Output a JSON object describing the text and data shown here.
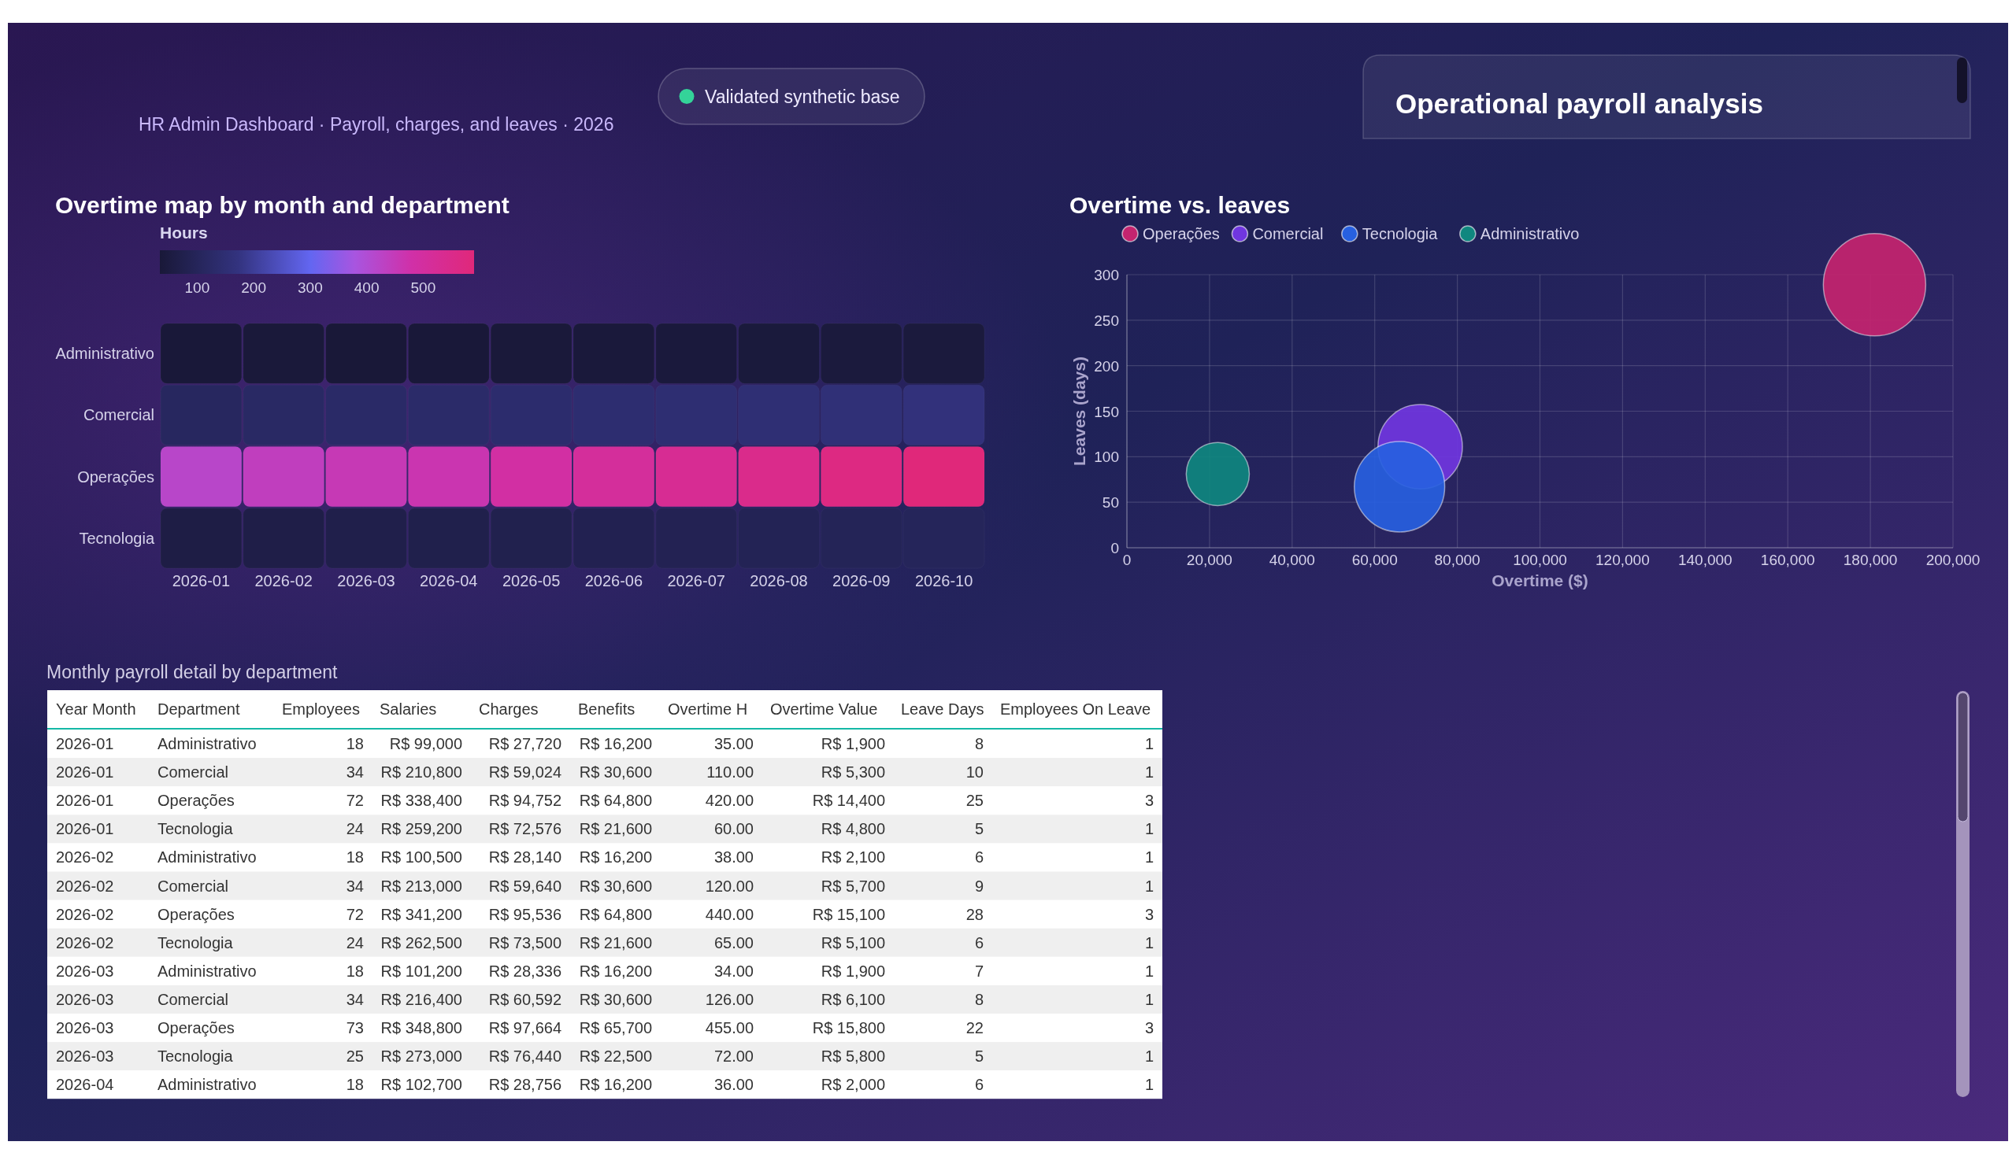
{
  "chart_data": [
    {
      "type": "other",
      "title": "Operational payroll analysis",
      "subtitle": "HR Admin Dashboard · Payroll, charges, and leaves · 2026",
      "annotations": [
        "Validated synthetic base"
      ]
    },
    {
      "type": "heatmap",
      "title": "Overtime map by month and department",
      "clabel": "Hours",
      "categories": [
        "2026-01",
        "2026-02",
        "2026-03",
        "2026-04",
        "2026-05",
        "2026-06",
        "2026-07",
        "2026-08",
        "2026-09",
        "2026-10"
      ],
      "y_categories": [
        "Administrativo",
        "Comercial",
        "Operações",
        "Tecnologia"
      ],
      "cells": [
        [
          35,
          38,
          34,
          36,
          38,
          40,
          41,
          42,
          43,
          44
        ],
        [
          110,
          120,
          126,
          130,
          138,
          143,
          148,
          152,
          158,
          165
        ],
        [
          420,
          440,
          455,
          465,
          490,
          510,
          530,
          550,
          570,
          590
        ],
        [
          60,
          65,
          72,
          74,
          78,
          82,
          86,
          90,
          95,
          100
        ]
      ],
      "clim": [
        34,
        590
      ],
      "cticks": [
        100,
        200,
        300,
        400,
        500
      ]
    },
    {
      "type": "bubble",
      "title": "Overtime vs. leaves",
      "xlabel": "Overtime ($)",
      "ylabel": "Leaves (days)",
      "legend": "top left",
      "grid": true,
      "xlim": [
        0,
        200000
      ],
      "xticks": [
        0,
        {
          "value": 20000,
          "label": "20,000"
        },
        {
          "value": 40000,
          "label": "40,000"
        },
        {
          "value": 60000,
          "label": "60,000"
        },
        {
          "value": 80000,
          "label": "80,000"
        },
        {
          "value": 100000,
          "label": "100,000"
        },
        {
          "value": 120000,
          "label": "120,000"
        },
        {
          "value": 140000,
          "label": "140,000"
        },
        {
          "value": 160000,
          "label": "160,000"
        },
        {
          "value": 180000,
          "label": "180,000"
        },
        {
          "value": 200000,
          "label": "200,000"
        }
      ],
      "ylim": [
        0,
        300
      ],
      "yticks": [
        0,
        50,
        100,
        150,
        200,
        250,
        300
      ],
      "series": [
        {
          "name": "Operações",
          "color": "#c4246f",
          "x": [
            181000
          ],
          "values": [
            289
          ],
          "sizes": [
            1
          ]
        },
        {
          "name": "Comercial",
          "color": "#7036e0",
          "x": [
            71000
          ],
          "values": [
            111
          ],
          "sizes": [
            0.68
          ]
        },
        {
          "name": "Tecnologia",
          "color": "#2760e0",
          "x": [
            66000
          ],
          "values": [
            67
          ],
          "sizes": [
            0.78
          ]
        },
        {
          "name": "Administrativo",
          "color": "#0f877f",
          "x": [
            22000
          ],
          "values": [
            81
          ],
          "sizes": [
            0.38
          ]
        }
      ]
    },
    {
      "type": "other",
      "title": "Monthly payroll detail by department",
      "categories": [
        "Year Month",
        "Department",
        "Employees",
        "Salaries",
        "Charges",
        "Benefits",
        "Overtime H",
        "Overtime Value",
        "Leave Days",
        "Employees On Leave"
      ],
      "cell_labels": [
        [
          "2026-01",
          "Administrativo",
          "18",
          "R$ 99,000",
          "R$ 27,720",
          "R$ 16,200",
          "35.00",
          "R$ 1,900",
          "8",
          "1"
        ],
        [
          "2026-01",
          "Comercial",
          "34",
          "R$ 210,800",
          "R$ 59,024",
          "R$ 30,600",
          "110.00",
          "R$ 5,300",
          "10",
          "1"
        ],
        [
          "2026-01",
          "Operações",
          "72",
          "R$ 338,400",
          "R$ 94,752",
          "R$ 64,800",
          "420.00",
          "R$ 14,400",
          "25",
          "3"
        ],
        [
          "2026-01",
          "Tecnologia",
          "24",
          "R$ 259,200",
          "R$ 72,576",
          "R$ 21,600",
          "60.00",
          "R$ 4,800",
          "5",
          "1"
        ],
        [
          "2026-02",
          "Administrativo",
          "18",
          "R$ 100,500",
          "R$ 28,140",
          "R$ 16,200",
          "38.00",
          "R$ 2,100",
          "6",
          "1"
        ],
        [
          "2026-02",
          "Comercial",
          "34",
          "R$ 213,000",
          "R$ 59,640",
          "R$ 30,600",
          "120.00",
          "R$ 5,700",
          "9",
          "1"
        ],
        [
          "2026-02",
          "Operações",
          "72",
          "R$ 341,200",
          "R$ 95,536",
          "R$ 64,800",
          "440.00",
          "R$ 15,100",
          "28",
          "3"
        ],
        [
          "2026-02",
          "Tecnologia",
          "24",
          "R$ 262,500",
          "R$ 73,500",
          "R$ 21,600",
          "65.00",
          "R$ 5,100",
          "6",
          "1"
        ],
        [
          "2026-03",
          "Administrativo",
          "18",
          "R$ 101,200",
          "R$ 28,336",
          "R$ 16,200",
          "34.00",
          "R$ 1,900",
          "7",
          "1"
        ],
        [
          "2026-03",
          "Comercial",
          "34",
          "R$ 216,400",
          "R$ 60,592",
          "R$ 30,600",
          "126.00",
          "R$ 6,100",
          "8",
          "1"
        ],
        [
          "2026-03",
          "Operações",
          "73",
          "R$ 348,800",
          "R$ 97,664",
          "R$ 65,700",
          "455.00",
          "R$ 15,800",
          "22",
          "3"
        ],
        [
          "2026-03",
          "Tecnologia",
          "25",
          "R$ 273,000",
          "R$ 76,440",
          "R$ 22,500",
          "72.00",
          "R$ 5,800",
          "5",
          "1"
        ],
        [
          "2026-04",
          "Administrativo",
          "18",
          "R$ 102,700",
          "R$ 28,756",
          "R$ 16,200",
          "36.00",
          "R$ 2,000",
          "6",
          "1"
        ]
      ]
    }
  ]
}
